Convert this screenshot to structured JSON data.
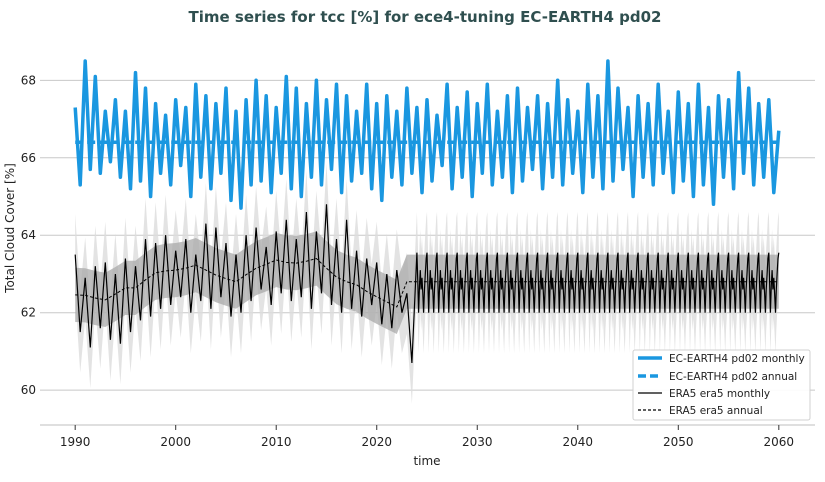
{
  "chart_data": {
    "type": "line",
    "title": "Time series for tcc [%] for ece4-tuning EC-EARTH4 pd02",
    "xlabel": "time",
    "ylabel": "Total Cloud Cover [%]",
    "xlim": [
      1986.5,
      2063.6
    ],
    "ylim": [
      59.1,
      69.3
    ],
    "xticks": [
      1990,
      2000,
      2010,
      2020,
      2030,
      2040,
      2050,
      2060
    ],
    "yticks": [
      60,
      62,
      64,
      66,
      68
    ],
    "grid": "horizontal",
    "legend_position": "bottom-right",
    "colors": {
      "model": "#1a97e0",
      "era5": "#000000",
      "band_dark": "#a9a9a9",
      "band_light": "#dcdcdc",
      "title": "#2f4f4f",
      "grid": "#c8c8c8"
    },
    "legend": [
      "EC-EARTH4 pd02 monthly",
      "EC-EARTH4 pd02 annual",
      "ERA5 era5 monthly",
      "ERA5 era5 annual"
    ],
    "model_monthly": {
      "start_year": 1990,
      "step_years": 0.5,
      "values": [
        67.3,
        65.3,
        68.5,
        65.7,
        68.1,
        65.6,
        67.2,
        65.9,
        67.5,
        65.5,
        67.2,
        65.2,
        68.2,
        65.4,
        67.8,
        65.0,
        67.4,
        65.6,
        67.1,
        65.3,
        67.5,
        65.8,
        67.3,
        65.0,
        67.9,
        65.5,
        67.6,
        65.2,
        67.4,
        65.6,
        67.8,
        64.9,
        67.2,
        64.7,
        67.5,
        65.3,
        68.0,
        65.4,
        67.6,
        65.1,
        67.3,
        65.6,
        68.1,
        65.2,
        67.8,
        65.0,
        67.4,
        65.5,
        68.0,
        65.3,
        67.5,
        65.7,
        67.9,
        65.1,
        67.6,
        65.4,
        67.2,
        65.6,
        67.9,
        65.2,
        67.4,
        64.9,
        67.6,
        65.5,
        67.2,
        65.3,
        67.8,
        65.6,
        67.3,
        65.1,
        67.5,
        65.4,
        67.1,
        65.8,
        67.9,
        65.2,
        67.3,
        65.5,
        67.7,
        65.0,
        67.4,
        65.6,
        67.9,
        65.3,
        67.2,
        65.5,
        67.6,
        65.1,
        67.8,
        65.4,
        67.3,
        65.7,
        67.6,
        65.2,
        67.4,
        65.5,
        68.0,
        65.3,
        67.5,
        65.6,
        67.2,
        65.1,
        67.9,
        65.5,
        67.6,
        65.2,
        68.5,
        65.4,
        67.8,
        65.7,
        67.3,
        65.0,
        67.6,
        65.5,
        67.4,
        65.3,
        67.9,
        65.6,
        67.2,
        65.1,
        67.7,
        65.4,
        67.4,
        65.0,
        67.9,
        65.3,
        67.3,
        64.8,
        67.6,
        65.5,
        67.5,
        65.2,
        68.2,
        65.6,
        67.8,
        65.3,
        67.4,
        65.5,
        67.5,
        65.1,
        66.7
      ]
    },
    "model_annual": {
      "start_year": 1990,
      "value": 66.4
    },
    "era5_monthly": {
      "start_year": 1990,
      "step_years": 0.5,
      "values": [
        63.5,
        61.5,
        62.9,
        61.1,
        63.2,
        61.6,
        63.3,
        61.3,
        63.0,
        61.2,
        63.4,
        61.5,
        63.2,
        61.8,
        63.9,
        61.9,
        63.8,
        62.1,
        64.0,
        62.2,
        63.6,
        62.4,
        63.9,
        62.0,
        63.5,
        62.3,
        64.3,
        62.1,
        64.2,
        62.4,
        63.8,
        61.9,
        63.5,
        62.0,
        64.0,
        62.3,
        64.2,
        62.6,
        63.7,
        62.2,
        64.1,
        62.5,
        64.4,
        62.3,
        63.9,
        62.4,
        64.6,
        62.1,
        64.1,
        62.5,
        64.8,
        62.2,
        63.9,
        62.0,
        64.4,
        62.1,
        63.6,
        61.9,
        63.4,
        62.2,
        63.3,
        61.7,
        63.0,
        61.6,
        63.1,
        62.0,
        62.5,
        60.7
      ]
    },
    "era5_annual": {
      "start_year": 1990,
      "values": [
        62.46,
        62.45,
        62.38,
        62.33,
        62.48,
        62.64,
        62.64,
        62.85,
        63.03,
        63.08,
        63.1,
        63.15,
        63.23,
        63.1,
        62.97,
        62.88,
        62.8,
        62.98,
        63.15,
        63.25,
        63.36,
        63.3,
        63.28,
        63.33,
        63.4,
        63.15,
        62.92,
        62.8,
        62.72,
        62.55,
        62.41,
        62.28,
        62.15,
        62.8
      ]
    },
    "era5_climatology": {
      "start_year": 2024,
      "end_year": 2060,
      "monthly": [
        63.55,
        62.8,
        62.0,
        62.7,
        63.1,
        62.6,
        62.9,
        62.5,
        62.0,
        62.6,
        63.0,
        63.4
      ],
      "annual": 62.8
    },
    "era5_annual_band_halfwidth": 0.7,
    "era5_monthly_band_halfwidth": 1.05
  }
}
